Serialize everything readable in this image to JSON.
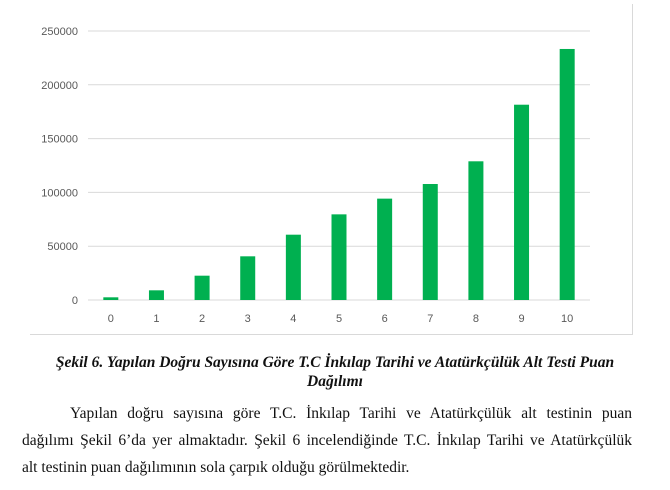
{
  "chart_data": {
    "type": "bar",
    "title": "",
    "xlabel": "",
    "ylabel": "",
    "categories": [
      "0",
      "1",
      "2",
      "3",
      "4",
      "5",
      "6",
      "7",
      "8",
      "9",
      "10"
    ],
    "values": [
      2500,
      9000,
      22600,
      40600,
      60700,
      79600,
      94200,
      107800,
      128900,
      181500,
      233300
    ],
    "ylim": [
      0,
      250000
    ],
    "yticks": [
      "0",
      "50000",
      "100000",
      "150000",
      "200000",
      "250000"
    ],
    "grid": true,
    "legend": "none",
    "bar_color": "#00b050"
  },
  "caption": {
    "line1": "Şekil 6. Yapılan Doğru Sayısına Göre T.C İnkılap Tarihi ve Atatürkçülük Alt Testi Puan",
    "line2": "Dağılımı"
  },
  "paragraph": [
    "Yapılan doğru sayısına göre T.C. İnkılap Tarihi ve Atatürkçülük alt testinin puan",
    "dağılımı Şekil 6’da yer almaktadır. Şekil 6 incelendiğinde T.C. İnkılap Tarihi ve Atatürkçülük",
    "alt testinin puan dağılımının sola çarpık olduğu görülmektedir."
  ]
}
